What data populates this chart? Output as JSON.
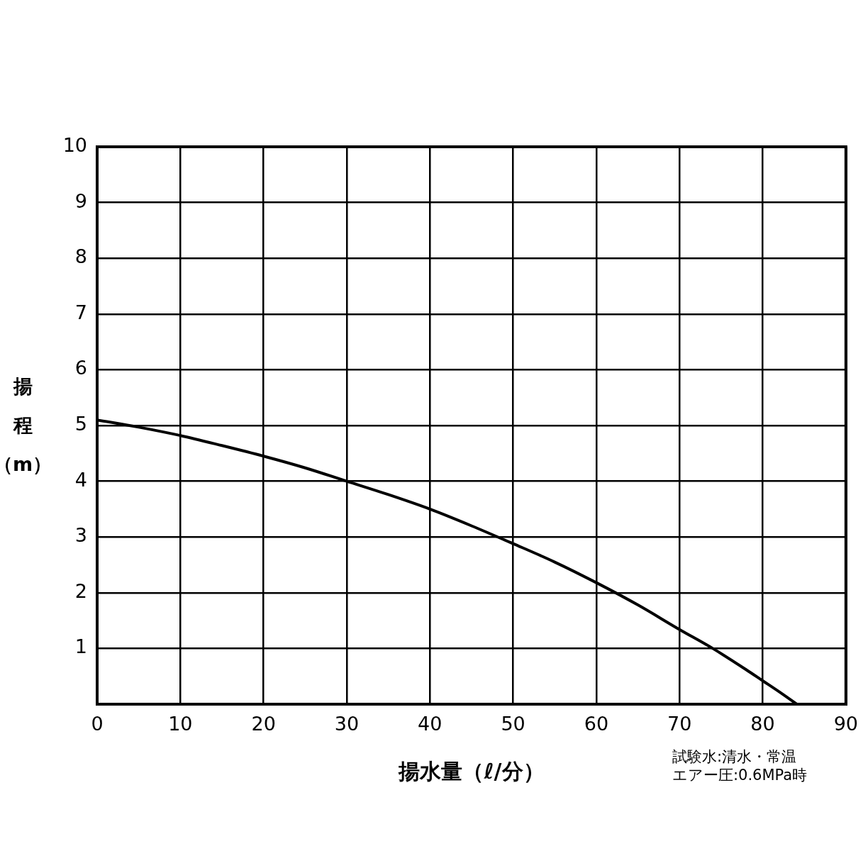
{
  "chart_data": {
    "type": "line",
    "xlabel": "揚水量（ℓ/分）",
    "ylabel": "揚程（m）",
    "annotations": [
      "試験水:清水・常温",
      "エアー圧:0.6MPa時"
    ],
    "x": [
      0,
      5,
      10,
      15,
      20,
      25,
      30,
      35,
      40,
      45,
      50,
      55,
      60,
      65,
      70,
      74,
      78,
      80,
      82,
      84.1
    ],
    "series": [
      {
        "color": "#000000",
        "values": [
          5.1,
          4.97,
          4.82,
          4.64,
          4.45,
          4.24,
          4.0,
          3.76,
          3.5,
          3.2,
          2.88,
          2.55,
          2.18,
          1.78,
          1.34,
          1.0,
          0.62,
          0.42,
          0.22,
          0
        ]
      }
    ],
    "xlim": [
      0,
      90
    ],
    "xticks": [
      0,
      10,
      20,
      30,
      40,
      50,
      60,
      70,
      80,
      90
    ],
    "ylim": [
      0,
      10
    ],
    "yticks": [
      {
        "value": 0,
        "label": null
      },
      1,
      2,
      3,
      4,
      5,
      6,
      7,
      8,
      9,
      10
    ],
    "grid": true,
    "legend": false,
    "marker": "none",
    "line_style": "solid"
  }
}
